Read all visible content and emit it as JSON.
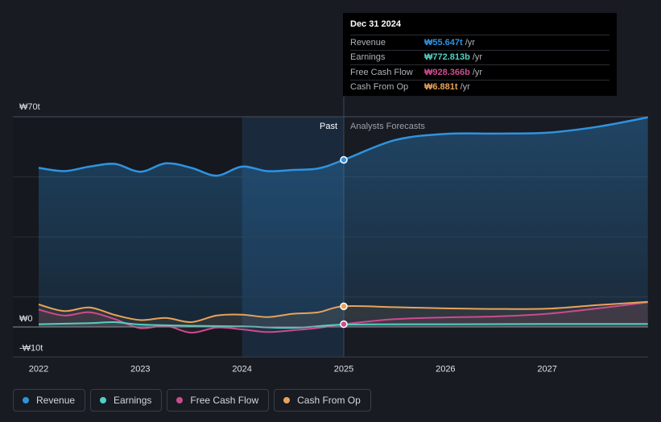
{
  "chart_data": {
    "type": "area",
    "currency": "₩",
    "y_label_max": "₩70t",
    "y_label_zero": "₩0",
    "y_label_min": "-₩10t",
    "ylim": [
      -10,
      70
    ],
    "x_ticks": [
      {
        "label": "2022",
        "value": 2022.0
      },
      {
        "label": "2023",
        "value": 2023.0
      },
      {
        "label": "2024",
        "value": 2024.0
      },
      {
        "label": "2025",
        "value": 2025.0
      },
      {
        "label": "2026",
        "value": 2026.0
      },
      {
        "label": "2027",
        "value": 2027.0
      }
    ],
    "xlim": [
      2021.74,
      2027.99
    ],
    "highlight_start": 2024.0,
    "split_x": 2025.0,
    "past_label": "Past",
    "forecast_label": "Analysts Forecasts",
    "series": [
      {
        "name": "Revenue",
        "color": "#2f93e0",
        "fill": true,
        "points": [
          [
            2022.0,
            53.0
          ],
          [
            2022.25,
            51.9
          ],
          [
            2022.5,
            53.4
          ],
          [
            2022.75,
            54.3
          ],
          [
            2023.0,
            51.7
          ],
          [
            2023.25,
            54.5
          ],
          [
            2023.5,
            53.0
          ],
          [
            2023.75,
            50.4
          ],
          [
            2024.0,
            53.4
          ],
          [
            2024.25,
            51.9
          ],
          [
            2024.5,
            52.3
          ],
          [
            2024.75,
            52.8
          ],
          [
            2025.0,
            55.647
          ],
          [
            2025.5,
            62.2
          ],
          [
            2026.0,
            64.3
          ],
          [
            2026.5,
            64.4
          ],
          [
            2027.0,
            64.7
          ],
          [
            2027.5,
            66.7
          ],
          [
            2027.99,
            69.8
          ]
        ]
      },
      {
        "name": "Earnings",
        "color": "#4fd1c5",
        "fill": false,
        "points": [
          [
            2022.0,
            0.9
          ],
          [
            2022.5,
            1.3
          ],
          [
            2022.75,
            1.6
          ],
          [
            2023.0,
            0.8
          ],
          [
            2023.5,
            0.4
          ],
          [
            2024.0,
            0.2
          ],
          [
            2024.5,
            -0.3
          ],
          [
            2025.0,
            0.772813
          ],
          [
            2026.0,
            0.9
          ],
          [
            2027.0,
            1.0
          ],
          [
            2027.99,
            1.0
          ]
        ]
      },
      {
        "name": "Free Cash Flow",
        "color": "#cc4b8f",
        "fill": false,
        "points": [
          [
            2022.0,
            5.8
          ],
          [
            2022.25,
            3.8
          ],
          [
            2022.5,
            4.9
          ],
          [
            2022.75,
            2.6
          ],
          [
            2023.0,
            -0.4
          ],
          [
            2023.25,
            0.4
          ],
          [
            2023.5,
            -1.9
          ],
          [
            2023.75,
            -0.2
          ],
          [
            2024.0,
            -0.8
          ],
          [
            2024.25,
            -1.7
          ],
          [
            2024.5,
            -1.1
          ],
          [
            2024.75,
            -0.3
          ],
          [
            2025.0,
            0.928366
          ],
          [
            2025.5,
            2.6
          ],
          [
            2026.0,
            3.2
          ],
          [
            2026.5,
            3.5
          ],
          [
            2027.0,
            4.4
          ],
          [
            2027.5,
            6.2
          ],
          [
            2027.99,
            8.2
          ]
        ]
      },
      {
        "name": "Cash From Op",
        "color": "#e7a35b",
        "fill": false,
        "points": [
          [
            2022.0,
            7.5
          ],
          [
            2022.25,
            5.3
          ],
          [
            2022.5,
            6.5
          ],
          [
            2022.75,
            4.0
          ],
          [
            2023.0,
            2.3
          ],
          [
            2023.25,
            3.0
          ],
          [
            2023.5,
            1.6
          ],
          [
            2023.75,
            3.8
          ],
          [
            2024.0,
            4.1
          ],
          [
            2024.25,
            3.3
          ],
          [
            2024.5,
            4.4
          ],
          [
            2024.75,
            4.9
          ],
          [
            2025.0,
            6.881
          ],
          [
            2025.5,
            6.6
          ],
          [
            2026.0,
            6.2
          ],
          [
            2026.5,
            6.0
          ],
          [
            2027.0,
            6.1
          ],
          [
            2027.5,
            7.3
          ],
          [
            2027.99,
            8.4
          ]
        ]
      }
    ]
  },
  "tooltip": {
    "date": "Dec 31 2024",
    "rows": [
      {
        "label": "Revenue",
        "value": "₩55.647t",
        "unit": "/yr",
        "color": "#2f93e0"
      },
      {
        "label": "Earnings",
        "value": "₩772.813b",
        "unit": "/yr",
        "color": "#4fd1c5"
      },
      {
        "label": "Free Cash Flow",
        "value": "₩928.366b",
        "unit": "/yr",
        "color": "#cc4b8f"
      },
      {
        "label": "Cash From Op",
        "value": "₩6.881t",
        "unit": "/yr",
        "color": "#e7a35b"
      }
    ]
  },
  "legend": [
    {
      "label": "Revenue",
      "color": "#2f93e0"
    },
    {
      "label": "Earnings",
      "color": "#4fd1c5"
    },
    {
      "label": "Free Cash Flow",
      "color": "#cc4b8f"
    },
    {
      "label": "Cash From Op",
      "color": "#e7a35b"
    }
  ]
}
